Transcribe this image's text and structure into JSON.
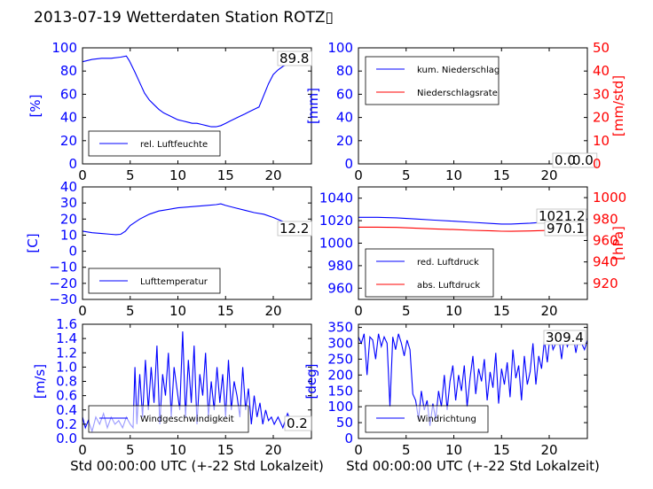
{
  "figure": {
    "title": "2013-07-19 Wetterdaten Station ROTZ▯"
  },
  "colors": {
    "blue": "#0000ff",
    "red": "#ff0000",
    "axis": "#000000"
  },
  "chart_data": [
    {
      "id": "humidity",
      "type": "line",
      "xlim": [
        0,
        24
      ],
      "ylim": [
        0,
        100
      ],
      "xticks": [
        "0",
        "5",
        "10",
        "15",
        "20"
      ],
      "yticks": [
        "0",
        "20",
        "40",
        "60",
        "80",
        "100"
      ],
      "ylabel": "[%]",
      "xlabel": "",
      "annotation": "89.8",
      "legend_placement": "lower-left",
      "series": [
        {
          "name": "rel. Luftfeuchte",
          "color": "#0000ff",
          "x": [
            0,
            1,
            2,
            3,
            4,
            4.6,
            4.9,
            5.5,
            6,
            6.5,
            7,
            7.5,
            8,
            8.5,
            9,
            9.5,
            10,
            10.5,
            11,
            11.5,
            12,
            12.5,
            13,
            13.5,
            14,
            14.5,
            15,
            15.5,
            16,
            16.5,
            17,
            17.5,
            18,
            18.5,
            19,
            19.5,
            20,
            20.5,
            21,
            21.5,
            22,
            22.5,
            23,
            23.5,
            24
          ],
          "y": [
            88,
            90,
            91,
            91,
            92,
            93,
            89,
            79,
            70,
            61,
            55,
            51,
            47,
            44,
            42,
            40,
            38,
            37,
            36,
            35,
            35,
            34,
            33,
            32,
            32,
            33,
            35,
            37,
            39,
            41,
            43,
            45,
            47,
            49,
            59,
            69,
            77,
            81,
            84,
            86,
            87,
            88,
            89,
            89.5,
            89.8
          ]
        }
      ]
    },
    {
      "id": "precipitation",
      "type": "line",
      "xlim": [
        0,
        24
      ],
      "ylim": [
        0,
        100
      ],
      "y2lim": [
        0,
        50
      ],
      "xticks": [
        "0",
        "5",
        "10",
        "15",
        "20"
      ],
      "yticks": [
        "0",
        "20",
        "40",
        "60",
        "80",
        "100"
      ],
      "y2ticks": [
        "0",
        "10",
        "20",
        "30",
        "40",
        "50"
      ],
      "ylabel": "[mm]",
      "y2label": "[mm/std]",
      "xlabel": "",
      "annotations": [
        "0.0",
        "0.0"
      ],
      "legend_placement": "top-left",
      "series": [
        {
          "name": "kum. Niederschlag",
          "color": "#0000ff",
          "axis": "left",
          "x": [
            0,
            24
          ],
          "y": [
            0,
            0
          ]
        },
        {
          "name": "Niederschlagsrate",
          "color": "#ff0000",
          "axis": "right",
          "x": [
            0,
            24
          ],
          "y": [
            0,
            0
          ]
        }
      ]
    },
    {
      "id": "temperature",
      "type": "line",
      "xlim": [
        0,
        24
      ],
      "ylim": [
        -30,
        40
      ],
      "xticks": [
        "0",
        "5",
        "10",
        "15",
        "20"
      ],
      "yticks": [
        "−30",
        "−20",
        "−10",
        "0",
        "10",
        "20",
        "30",
        "40"
      ],
      "ylabel": "[C]",
      "xlabel": "",
      "annotation": "12.2",
      "legend_placement": "lower-left",
      "series": [
        {
          "name": "Lufttemperatur",
          "color": "#0000ff",
          "x": [
            0,
            1,
            2,
            3,
            3.5,
            4,
            4.5,
            5,
            6,
            7,
            8,
            9,
            10,
            11,
            12,
            13,
            14,
            14.5,
            15,
            16,
            17,
            18,
            19,
            20,
            21,
            22,
            23,
            24
          ],
          "y": [
            12.5,
            11.5,
            11,
            10.5,
            10.3,
            10.5,
            12.5,
            16,
            20,
            23,
            25,
            26,
            27,
            27.5,
            28,
            28.5,
            29,
            29.5,
            28.5,
            27,
            25.5,
            24,
            23,
            21,
            18.5,
            15,
            12.8,
            12.2
          ]
        }
      ]
    },
    {
      "id": "pressure",
      "type": "line",
      "xlim": [
        0,
        24
      ],
      "ylim": [
        950,
        1050
      ],
      "y2lim": [
        905,
        1010
      ],
      "xticks": [
        "0",
        "5",
        "10",
        "15",
        "20"
      ],
      "yticks": [
        "960",
        "980",
        "1000",
        "1020",
        "1040"
      ],
      "y2ticks": [
        "920",
        "940",
        "960",
        "980",
        "1000"
      ],
      "ylabel": "",
      "y2label": "[hPa]",
      "xlabel": "",
      "annotations": [
        "1021.2",
        "970.1"
      ],
      "legend_placement": "lower-left",
      "series": [
        {
          "name": "red. Luftdruck",
          "color": "#0000ff",
          "axis": "left",
          "x": [
            0,
            2,
            4,
            6,
            8,
            10,
            12,
            14,
            15,
            16,
            18,
            20,
            22,
            24
          ],
          "y": [
            1023,
            1023,
            1022.5,
            1021.5,
            1020.5,
            1019.5,
            1018.5,
            1017.5,
            1017,
            1017,
            1017.8,
            1019,
            1020.5,
            1021.2
          ]
        },
        {
          "name": "abs. Luftdruck",
          "color": "#ff0000",
          "axis": "right",
          "x": [
            0,
            2,
            4,
            6,
            8,
            10,
            12,
            14,
            15,
            16,
            18,
            20,
            22,
            24
          ],
          "y": [
            972.5,
            972.5,
            972.2,
            971.5,
            970.8,
            970.2,
            969.5,
            969,
            968.7,
            968.6,
            968.9,
            969.4,
            969.8,
            970.1
          ]
        }
      ]
    },
    {
      "id": "windspeed",
      "type": "line",
      "xlim": [
        0,
        24
      ],
      "ylim": [
        0,
        1.6
      ],
      "xticks": [
        "0",
        "5",
        "10",
        "15",
        "20"
      ],
      "yticks": [
        "0.0",
        "0.2",
        "0.4",
        "0.6",
        "0.8",
        "1.0",
        "1.2",
        "1.4",
        "1.6"
      ],
      "ylabel": "[m/s]",
      "xlabel": "Std 00:00:00 UTC (+-22 Std Lokalzeit)",
      "annotation": "0.2",
      "legend_placement": "lower-left",
      "series": [
        {
          "name": "Windgeschwindigkeit",
          "color": "#0000ff",
          "x": [
            0,
            0.3,
            0.6,
            1,
            1.4,
            1.8,
            2.2,
            2.6,
            3,
            3.4,
            3.8,
            4.2,
            4.6,
            5,
            5.3,
            5.5,
            5.7,
            6,
            6.3,
            6.6,
            6.9,
            7.2,
            7.5,
            7.8,
            8.1,
            8.4,
            8.7,
            9,
            9.3,
            9.6,
            9.9,
            10.2,
            10.5,
            10.8,
            11.1,
            11.4,
            11.7,
            12,
            12.3,
            12.6,
            12.9,
            13.2,
            13.5,
            13.8,
            14.1,
            14.4,
            14.7,
            15,
            15.3,
            15.6,
            15.9,
            16.2,
            16.5,
            16.8,
            17.1,
            17.4,
            17.7,
            18,
            18.3,
            18.6,
            18.9,
            19.2,
            19.5,
            19.8,
            20.1,
            20.5,
            21,
            21.5,
            22,
            22.5,
            23,
            23.5,
            24
          ],
          "y": [
            0.3,
            0.15,
            0.25,
            0.1,
            0.3,
            0.2,
            0.35,
            0.15,
            0.3,
            0.2,
            0.25,
            0.15,
            0.3,
            0.2,
            0.15,
            1.0,
            0.2,
            0.9,
            0.3,
            1.1,
            0.4,
            1.0,
            0.5,
            1.3,
            0.2,
            0.9,
            0.6,
            1.2,
            0.3,
            1.0,
            0.7,
            0.4,
            1.5,
            0.3,
            1.1,
            0.5,
            1.3,
            0.2,
            0.9,
            0.6,
            1.2,
            0.3,
            0.8,
            0.4,
            1.0,
            0.5,
            0.9,
            0.3,
            1.1,
            0.4,
            0.8,
            0.6,
            0.3,
            1.0,
            0.4,
            0.7,
            0.2,
            0.6,
            0.3,
            0.5,
            0.2,
            0.4,
            0.25,
            0.3,
            0.2,
            0.3,
            0.15,
            0.35,
            0.2,
            0.25,
            0.3,
            0.15,
            0.2
          ]
        }
      ]
    },
    {
      "id": "winddir",
      "type": "line",
      "xlim": [
        0,
        24
      ],
      "ylim": [
        0,
        360
      ],
      "xticks": [
        "0",
        "5",
        "10",
        "15",
        "20"
      ],
      "yticks": [
        "0",
        "50",
        "100",
        "150",
        "200",
        "250",
        "300",
        "350"
      ],
      "ylabel": "[deg]",
      "xlabel": "Std 00:00:00 UTC (+-22 Std Lokalzeit)",
      "annotation": "309.4",
      "legend_placement": "lower-left",
      "series": [
        {
          "name": "Windrichtung",
          "color": "#0000ff",
          "x": [
            0,
            0.3,
            0.6,
            0.9,
            1.2,
            1.5,
            1.8,
            2.1,
            2.4,
            2.7,
            3,
            3.3,
            3.6,
            3.9,
            4.2,
            4.5,
            4.8,
            5.1,
            5.4,
            5.7,
            6,
            6.3,
            6.6,
            6.9,
            7.2,
            7.5,
            7.8,
            8.1,
            8.4,
            8.7,
            9,
            9.3,
            9.6,
            9.9,
            10.2,
            10.5,
            10.8,
            11.1,
            11.4,
            11.7,
            12,
            12.3,
            12.6,
            12.9,
            13.2,
            13.5,
            13.8,
            14.1,
            14.4,
            14.7,
            15,
            15.3,
            15.6,
            15.9,
            16.2,
            16.5,
            16.8,
            17.1,
            17.4,
            17.7,
            18,
            18.3,
            18.6,
            18.9,
            19.2,
            19.5,
            19.8,
            20.1,
            20.4,
            20.7,
            21,
            21.3,
            21.6,
            21.9,
            22.2,
            22.5,
            22.8,
            23.1,
            23.4,
            23.7,
            24
          ],
          "y": [
            320,
            300,
            330,
            200,
            320,
            310,
            250,
            330,
            290,
            320,
            300,
            100,
            320,
            280,
            330,
            300,
            260,
            310,
            280,
            140,
            120,
            60,
            150,
            90,
            120,
            40,
            110,
            60,
            150,
            100,
            200,
            90,
            180,
            230,
            120,
            200,
            150,
            230,
            100,
            190,
            260,
            140,
            220,
            180,
            250,
            120,
            210,
            160,
            270,
            110,
            220,
            170,
            240,
            130,
            280,
            190,
            230,
            120,
            260,
            170,
            210,
            300,
            170,
            260,
            220,
            310,
            240,
            330,
            280,
            300,
            320,
            250,
            330,
            290,
            310,
            330,
            270,
            320,
            300,
            280,
            309.4
          ]
        }
      ]
    }
  ]
}
